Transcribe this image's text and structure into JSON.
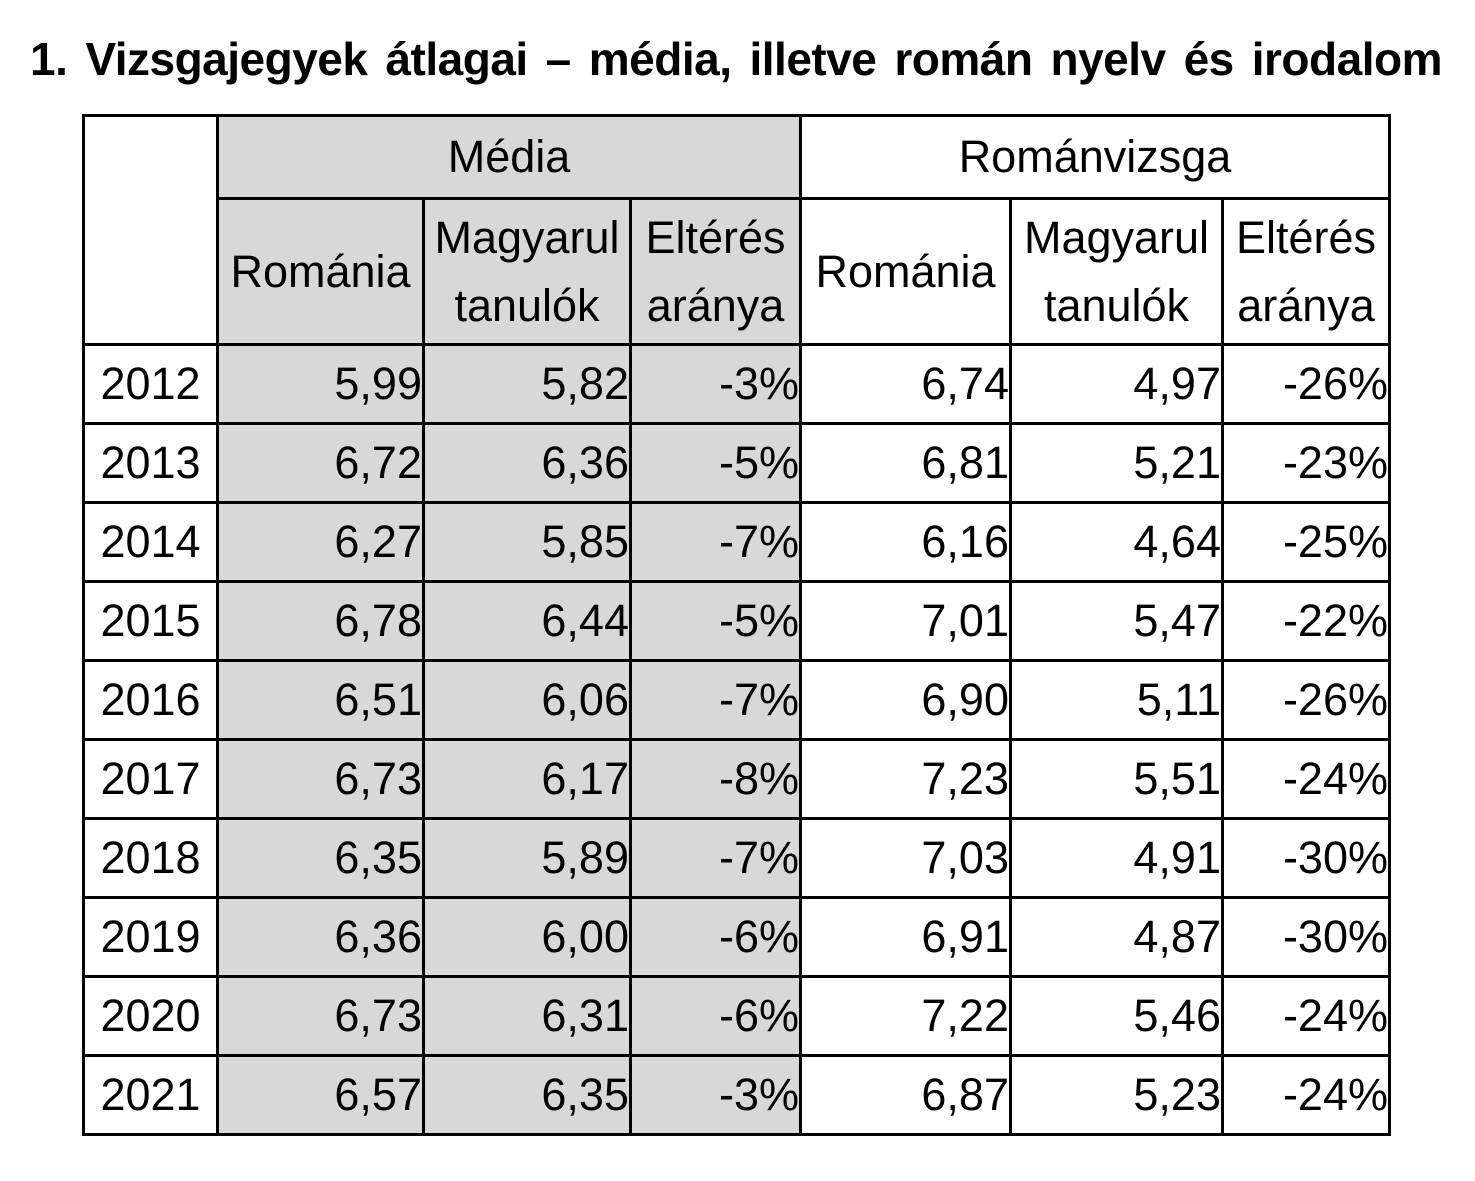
{
  "page": {
    "title": "1. Vizsgajegyek átlagai – média, illetve román nyelv és irodalom"
  },
  "colors": {
    "shaded_cell": "#d8d8d8",
    "border": "#000000",
    "background": "#ffffff",
    "text": "#000000"
  },
  "table": {
    "groups": [
      {
        "label": "Média",
        "shaded": true
      },
      {
        "label": "Románvizsga",
        "shaded": false
      }
    ],
    "subheaders": [
      "Románia",
      "Magyarul tanulók",
      "Eltérés aránya",
      "Románia",
      "Magyarul tanulók",
      "Eltérés aránya"
    ],
    "rows": [
      {
        "year": "2012",
        "values": [
          "5,99",
          "5,82",
          "-3%",
          "6,74",
          "4,97",
          "-26%"
        ]
      },
      {
        "year": "2013",
        "values": [
          "6,72",
          "6,36",
          "-5%",
          "6,81",
          "5,21",
          "-23%"
        ]
      },
      {
        "year": "2014",
        "values": [
          "6,27",
          "5,85",
          "-7%",
          "6,16",
          "4,64",
          "-25%"
        ]
      },
      {
        "year": "2015",
        "values": [
          "6,78",
          "6,44",
          "-5%",
          "7,01",
          "5,47",
          "-22%"
        ]
      },
      {
        "year": "2016",
        "values": [
          "6,51",
          "6,06",
          "-7%",
          "6,90",
          "5,11",
          "-26%"
        ]
      },
      {
        "year": "2017",
        "values": [
          "6,73",
          "6,17",
          "-8%",
          "7,23",
          "5,51",
          "-24%"
        ]
      },
      {
        "year": "2018",
        "values": [
          "6,35",
          "5,89",
          "-7%",
          "7,03",
          "4,91",
          "-30%"
        ]
      },
      {
        "year": "2019",
        "values": [
          "6,36",
          "6,00",
          "-6%",
          "6,91",
          "4,87",
          "-30%"
        ]
      },
      {
        "year": "2020",
        "values": [
          "6,73",
          "6,31",
          "-6%",
          "7,22",
          "5,46",
          "-24%"
        ]
      },
      {
        "year": "2021",
        "values": [
          "6,57",
          "6,35",
          "-3%",
          "6,87",
          "5,23",
          "-24%"
        ]
      }
    ]
  }
}
